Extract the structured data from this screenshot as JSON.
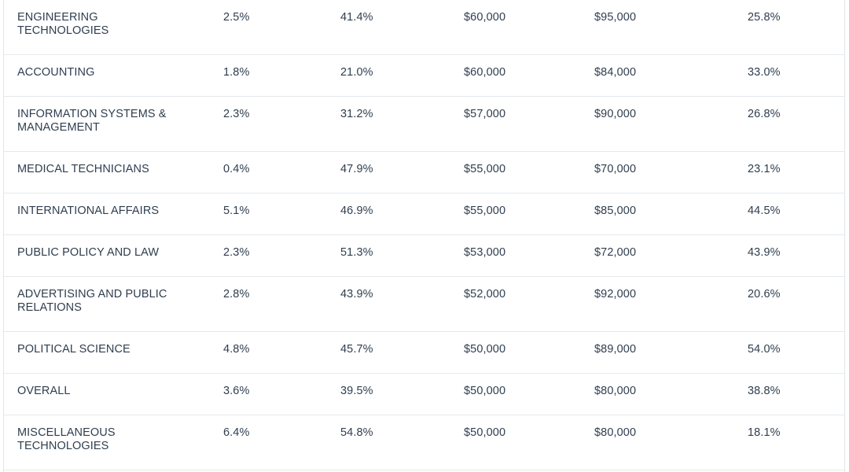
{
  "table": {
    "rows": [
      {
        "major": "ENGINEERING TECHNOLOGIES",
        "c1": "2.5%",
        "c2": "41.4%",
        "c3": "$60,000",
        "c4": "$95,000",
        "c5": "25.8%"
      },
      {
        "major": "ACCOUNTING",
        "c1": "1.8%",
        "c2": "21.0%",
        "c3": "$60,000",
        "c4": "$84,000",
        "c5": "33.0%"
      },
      {
        "major": "INFORMATION SYSTEMS & MANAGEMENT",
        "c1": "2.3%",
        "c2": "31.2%",
        "c3": "$57,000",
        "c4": "$90,000",
        "c5": "26.8%"
      },
      {
        "major": "MEDICAL TECHNICIANS",
        "c1": "0.4%",
        "c2": "47.9%",
        "c3": "$55,000",
        "c4": "$70,000",
        "c5": "23.1%"
      },
      {
        "major": "INTERNATIONAL AFFAIRS",
        "c1": "5.1%",
        "c2": "46.9%",
        "c3": "$55,000",
        "c4": "$85,000",
        "c5": "44.5%"
      },
      {
        "major": "PUBLIC POLICY AND LAW",
        "c1": "2.3%",
        "c2": "51.3%",
        "c3": "$53,000",
        "c4": "$72,000",
        "c5": "43.9%"
      },
      {
        "major": "ADVERTISING AND PUBLIC RELATIONS",
        "c1": "2.8%",
        "c2": "43.9%",
        "c3": "$52,000",
        "c4": "$92,000",
        "c5": "20.6%"
      },
      {
        "major": "POLITICAL SCIENCE",
        "c1": "4.8%",
        "c2": "45.7%",
        "c3": "$50,000",
        "c4": "$89,000",
        "c5": "54.0%"
      },
      {
        "major": "OVERALL",
        "c1": "3.6%",
        "c2": "39.5%",
        "c3": "$50,000",
        "c4": "$80,000",
        "c5": "38.8%"
      },
      {
        "major": "MISCELLANEOUS TECHNOLOGIES",
        "c1": "6.4%",
        "c2": "54.8%",
        "c3": "$50,000",
        "c4": "$80,000",
        "c5": "18.1%"
      }
    ]
  }
}
